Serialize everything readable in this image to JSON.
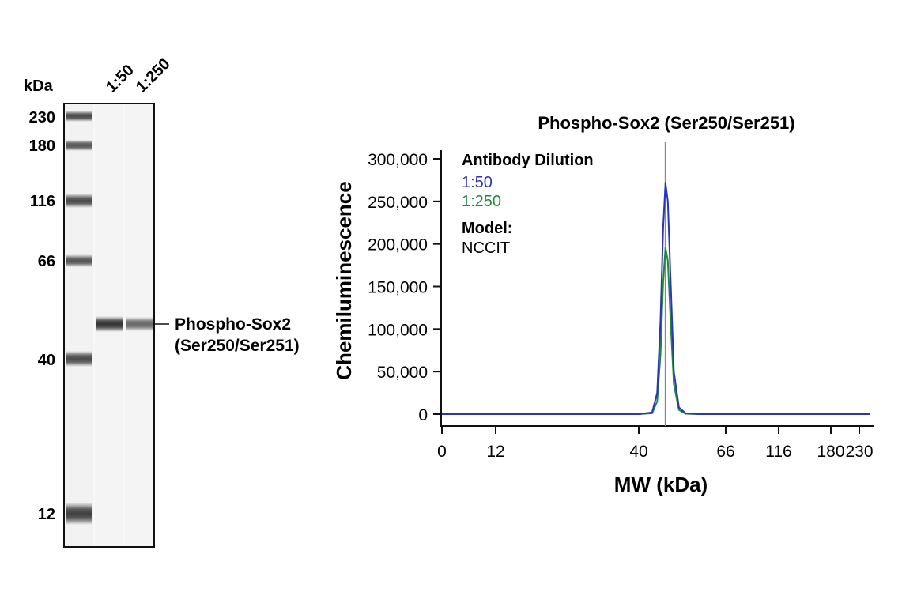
{
  "blot": {
    "kda_label": "kDa",
    "lane_labels": [
      "1:50",
      "1:250"
    ],
    "ladder_markers": [
      "230",
      "180",
      "116",
      "66",
      "40",
      "12"
    ],
    "band_label_line1": "Phospho-Sox2",
    "band_label_line2": "(Ser250/Ser251)",
    "band_intensity": [
      1.0,
      0.72
    ]
  },
  "chart_data": {
    "type": "line",
    "title": "Phospho-Sox2 (Ser250/Ser251)",
    "xlabel": "MW (kDa)",
    "ylabel": "Chemiluminescence",
    "x_tick_labels": [
      "0",
      "12",
      "40",
      "66",
      "116",
      "180",
      "230"
    ],
    "y_ticks": [
      0,
      50000,
      100000,
      150000,
      200000,
      250000,
      300000
    ],
    "y_tick_labels": [
      "0",
      "50,000",
      "100,000",
      "150,000",
      "200,000",
      "250,000",
      "300,000"
    ],
    "ylim": [
      0,
      300000
    ],
    "marker_kda": 48,
    "legend": {
      "header": "Antibody Dilution",
      "model_label": "Model:",
      "model_value": "NCCIT"
    },
    "series": [
      {
        "name": "1:50",
        "color": "#2b35b8",
        "x": [
          0,
          12,
          40,
          44,
          45.5,
          46.5,
          47.3,
          48,
          48.7,
          49.5,
          50.5,
          52,
          54,
          58,
          66,
          116,
          180,
          230
        ],
        "y": [
          0,
          0,
          0,
          2000,
          25000,
          110000,
          220000,
          272000,
          250000,
          160000,
          50000,
          8000,
          1000,
          0,
          0,
          0,
          0,
          0
        ]
      },
      {
        "name": "1:250",
        "color": "#1c8a3a",
        "x": [
          0,
          12,
          40,
          44,
          45.5,
          46.5,
          47.3,
          48,
          48.7,
          49.5,
          50.5,
          52,
          54,
          58,
          66,
          116,
          180,
          230
        ],
        "y": [
          0,
          0,
          0,
          1000,
          15000,
          70000,
          155000,
          196000,
          180000,
          110000,
          35000,
          5000,
          500,
          0,
          0,
          0,
          0,
          0
        ]
      }
    ]
  }
}
